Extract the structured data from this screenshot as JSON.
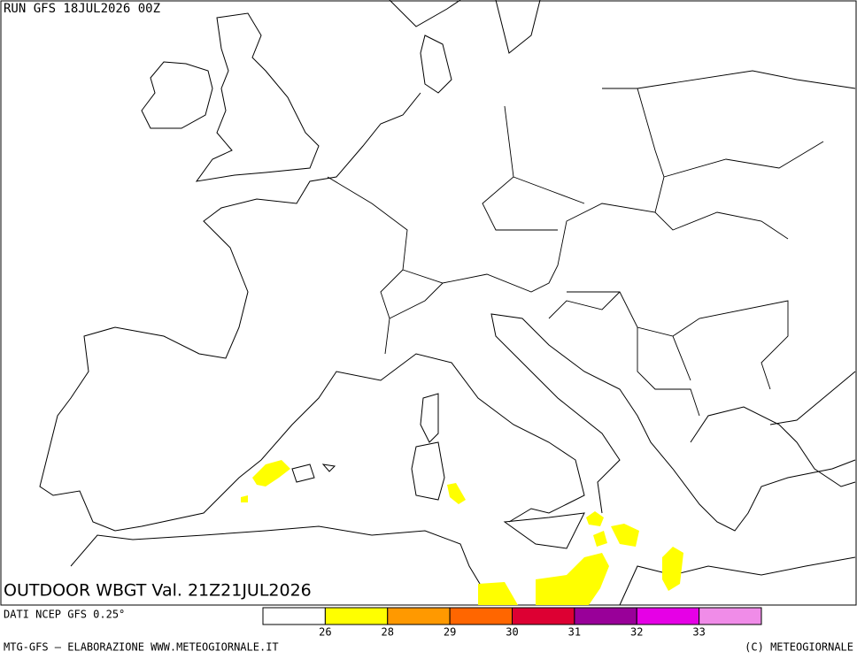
{
  "header": {
    "run": "RUN GFS 18JUL2026 00Z"
  },
  "map": {
    "title": "OUTDOOR WBGT Val. 21Z21JUL2026"
  },
  "footer": {
    "source": "DATI NCEP GFS 0.25°",
    "credit": "MTG-GFS — ELABORAZIONE WWW.METEOGIORNALE.IT",
    "copyright": "(C) METEOGIORNALE"
  },
  "legend": {
    "colors": [
      "#ffffff",
      "#ffff00",
      "#ff9900",
      "#ff6600",
      "#dd0033",
      "#990099",
      "#e600e6",
      "#f08ce8"
    ],
    "ticks": [
      26,
      28,
      29,
      30,
      31,
      32,
      33
    ]
  }
}
